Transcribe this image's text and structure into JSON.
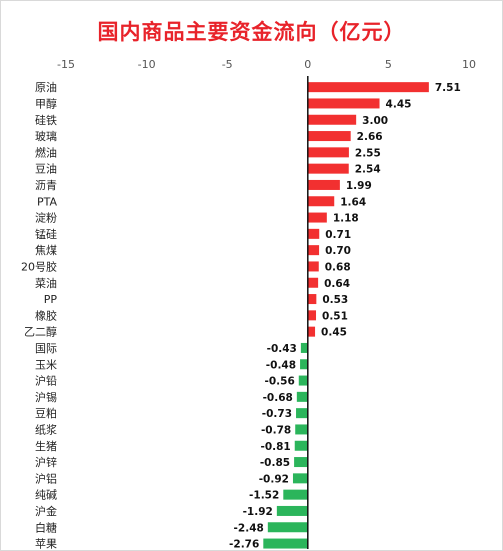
{
  "chart_data": {
    "type": "bar",
    "orientation": "horizontal",
    "title": "国内商品主要资金流向（亿元）",
    "xlabel": "",
    "ylabel": "",
    "xlim": [
      -15,
      10
    ],
    "xticks": [
      -15,
      -10,
      -5,
      0,
      5,
      10
    ],
    "grid": false,
    "legend": "none",
    "positive_color": "#f23030",
    "negative_color": "#2bb55b",
    "categories": [
      "原油",
      "甲醇",
      "硅铁",
      "玻璃",
      "燃油",
      "豆油",
      "沥青",
      "PTA",
      "淀粉",
      "锰硅",
      "焦煤",
      "20号胶",
      "菜油",
      "PP",
      "橡胶",
      "乙二醇",
      "国际",
      "玉米",
      "沪铅",
      "沪锡",
      "豆粕",
      "纸浆",
      "生猪",
      "沪锌",
      "沪铝",
      "纯碱",
      "沪金",
      "白糖",
      "苹果"
    ],
    "values": [
      7.51,
      4.45,
      3.0,
      2.66,
      2.55,
      2.54,
      1.99,
      1.64,
      1.18,
      0.71,
      0.7,
      0.68,
      0.64,
      0.53,
      0.51,
      0.45,
      -0.43,
      -0.48,
      -0.56,
      -0.68,
      -0.73,
      -0.78,
      -0.81,
      -0.85,
      -0.92,
      -1.52,
      -1.92,
      -2.48,
      -2.76
    ],
    "value_labels": [
      "7.51",
      "4.45",
      "3.00",
      "2.66",
      "2.55",
      "2.54",
      "1.99",
      "1.64",
      "1.18",
      "0.71",
      "0.70",
      "0.68",
      "0.64",
      "0.53",
      "0.51",
      "0.45",
      "-0.43",
      "-0.48",
      "-0.56",
      "-0.68",
      "-0.73",
      "-0.78",
      "-0.81",
      "-0.85",
      "-0.92",
      "-1.52",
      "-1.92",
      "-2.48",
      "-2.76"
    ]
  }
}
